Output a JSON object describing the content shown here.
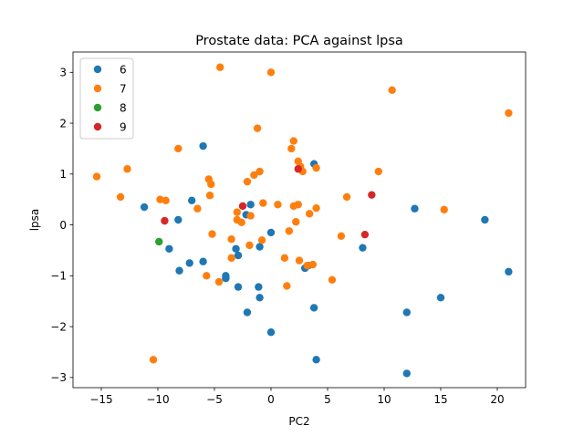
{
  "chart_data": {
    "type": "scatter",
    "title": "Prostate data: PCA against lpsa",
    "xlabel": "PC2",
    "ylabel": "lpsa",
    "xlim": [
      -17.5,
      22.5
    ],
    "ylim": [
      -3.2,
      3.4
    ],
    "xticks": [
      -15,
      -10,
      -5,
      0,
      5,
      10,
      15,
      20
    ],
    "yticks": [
      -3,
      -2,
      -1,
      0,
      1,
      2,
      3
    ],
    "grid": false,
    "legend_position": "top-left",
    "series": [
      {
        "name": "6",
        "color": "#1f77b4",
        "points": [
          [
            -6.0,
            1.55
          ],
          [
            3.8,
            1.2
          ],
          [
            -11.2,
            0.35
          ],
          [
            -7.0,
            0.48
          ],
          [
            -8.2,
            0.1
          ],
          [
            -2.2,
            0.2
          ],
          [
            -1.8,
            0.4
          ],
          [
            0,
            -0.15
          ],
          [
            -9.0,
            -0.47
          ],
          [
            -3.1,
            -0.47
          ],
          [
            -2.9,
            -0.6
          ],
          [
            -1.0,
            -0.43
          ],
          [
            -7.2,
            -0.75
          ],
          [
            -6.0,
            -0.72
          ],
          [
            -8.1,
            -0.9
          ],
          [
            -4.0,
            -1.0
          ],
          [
            -4.0,
            -1.05
          ],
          [
            -2.9,
            -1.22
          ],
          [
            -1.1,
            -1.22
          ],
          [
            -1.0,
            -1.43
          ],
          [
            -2.1,
            -1.72
          ],
          [
            0,
            -2.11
          ],
          [
            3.0,
            -0.85
          ],
          [
            3.3,
            -0.8
          ],
          [
            3.8,
            -1.63
          ],
          [
            4.0,
            -2.65
          ],
          [
            8.1,
            -0.45
          ],
          [
            12.7,
            0.32
          ],
          [
            12.0,
            -1.72
          ],
          [
            12.0,
            -2.92
          ],
          [
            15.0,
            -1.43
          ],
          [
            18.9,
            0.1
          ],
          [
            21.0,
            -0.92
          ]
        ]
      },
      {
        "name": "7",
        "color": "#ff7f0e",
        "points": [
          [
            -4.5,
            3.1
          ],
          [
            0,
            3.0
          ],
          [
            10.7,
            2.65
          ],
          [
            21.0,
            2.2
          ],
          [
            -1.2,
            1.9
          ],
          [
            -8.2,
            1.5
          ],
          [
            2.0,
            1.65
          ],
          [
            1.8,
            1.5
          ],
          [
            -12.7,
            1.1
          ],
          [
            -15.4,
            0.95
          ],
          [
            -5.5,
            0.9
          ],
          [
            -5.3,
            0.8
          ],
          [
            -2.1,
            0.85
          ],
          [
            -1.5,
            0.98
          ],
          [
            -1.0,
            1.05
          ],
          [
            2.4,
            1.25
          ],
          [
            2.6,
            1.15
          ],
          [
            2.8,
            1.05
          ],
          [
            4.0,
            1.12
          ],
          [
            9.5,
            1.05
          ],
          [
            -13.3,
            0.55
          ],
          [
            -9.8,
            0.5
          ],
          [
            -9.3,
            0.48
          ],
          [
            -5.4,
            0.58
          ],
          [
            -6.5,
            0.32
          ],
          [
            -3.0,
            0.25
          ],
          [
            -3.0,
            0.1
          ],
          [
            -2.6,
            0.05
          ],
          [
            -1.8,
            0.18
          ],
          [
            -0.7,
            0.43
          ],
          [
            0.6,
            0.4
          ],
          [
            2.0,
            0.37
          ],
          [
            2.4,
            0.4
          ],
          [
            3.4,
            0.22
          ],
          [
            4.0,
            0.33
          ],
          [
            6.7,
            0.55
          ],
          [
            15.3,
            0.3
          ],
          [
            -5.2,
            -0.18
          ],
          [
            -0.8,
            -0.3
          ],
          [
            -1.9,
            -0.4
          ],
          [
            -3.5,
            -0.28
          ],
          [
            1.6,
            -0.12
          ],
          [
            2.2,
            0.06
          ],
          [
            6.2,
            -0.22
          ],
          [
            -3.5,
            -0.65
          ],
          [
            1.2,
            -0.65
          ],
          [
            2.5,
            -0.7
          ],
          [
            3.2,
            -0.8
          ],
          [
            3.7,
            -0.78
          ],
          [
            -4.6,
            -1.12
          ],
          [
            -5.7,
            -1.0
          ],
          [
            1.4,
            -1.2
          ],
          [
            5.4,
            -1.08
          ],
          [
            -10.4,
            -2.65
          ]
        ]
      },
      {
        "name": "8",
        "color": "#2ca02c",
        "points": [
          [
            -9.9,
            -0.33
          ]
        ]
      },
      {
        "name": "9",
        "color": "#d62728",
        "points": [
          [
            -2.5,
            0.37
          ],
          [
            -9.4,
            0.08
          ],
          [
            2.4,
            1.1
          ],
          [
            8.9,
            0.59
          ],
          [
            8.3,
            -0.19
          ]
        ]
      }
    ]
  }
}
